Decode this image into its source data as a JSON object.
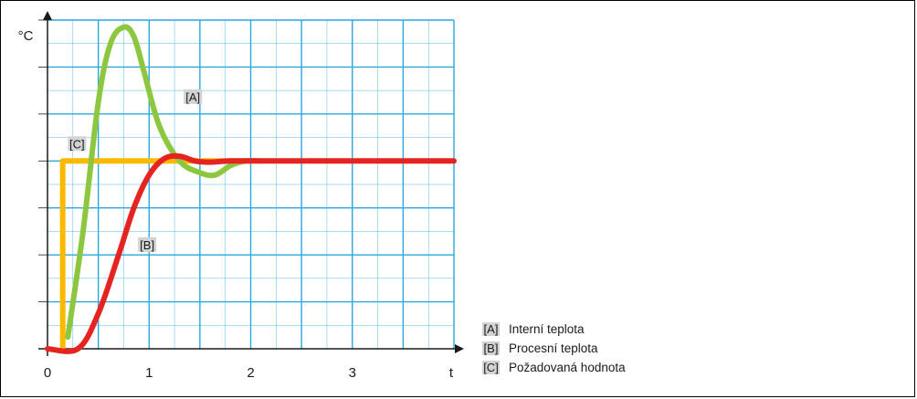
{
  "chart_data": {
    "type": "line",
    "ylabel": "°C",
    "xlabel": "t",
    "x_ticks": [
      "0",
      "1",
      "2",
      "3"
    ],
    "xlim": [
      0,
      4.0
    ],
    "ylim": [
      0,
      1.4
    ],
    "grid": true,
    "legend_position": "bottom-right",
    "series": [
      {
        "key": "A",
        "tag": "[A]",
        "name": "Interní teplota",
        "color": "#8dc63f",
        "x": [
          0.2,
          0.35,
          0.5,
          0.62,
          0.75,
          0.85,
          0.95,
          1.1,
          1.3,
          1.5,
          1.65,
          1.8,
          1.95,
          2.1
        ],
        "y": [
          0.05,
          0.5,
          1.05,
          1.3,
          1.37,
          1.33,
          1.18,
          0.95,
          0.8,
          0.75,
          0.74,
          0.78,
          0.8,
          0.8
        ]
      },
      {
        "key": "B",
        "tag": "[B]",
        "name": "Procesní teplota",
        "color": "#e52421",
        "x": [
          0.0,
          0.3,
          0.5,
          0.7,
          0.85,
          1.0,
          1.15,
          1.3,
          1.45,
          1.6,
          1.8,
          2.2,
          3.0,
          4.0
        ],
        "y": [
          0.0,
          0.0,
          0.15,
          0.4,
          0.6,
          0.74,
          0.81,
          0.82,
          0.8,
          0.795,
          0.8,
          0.8,
          0.8,
          0.8
        ]
      },
      {
        "key": "C",
        "tag": "[C]",
        "name": "Požadovaná hodnota",
        "color": "#fbb900",
        "x": [
          0.15,
          0.15,
          2.0
        ],
        "y": [
          0.0,
          0.8,
          0.8
        ]
      }
    ],
    "annotations": [
      {
        "series": "A",
        "text": "[A]",
        "x": 1.35,
        "y": 1.07
      },
      {
        "series": "B",
        "text": "[B]",
        "x": 0.9,
        "y": 0.44
      },
      {
        "series": "C",
        "text": "[C]",
        "x": 0.21,
        "y": 0.87
      }
    ]
  },
  "colors": {
    "grid": "#29a8e0",
    "axis": "#1a1a1a",
    "tag_background": "#d3d3d3"
  }
}
